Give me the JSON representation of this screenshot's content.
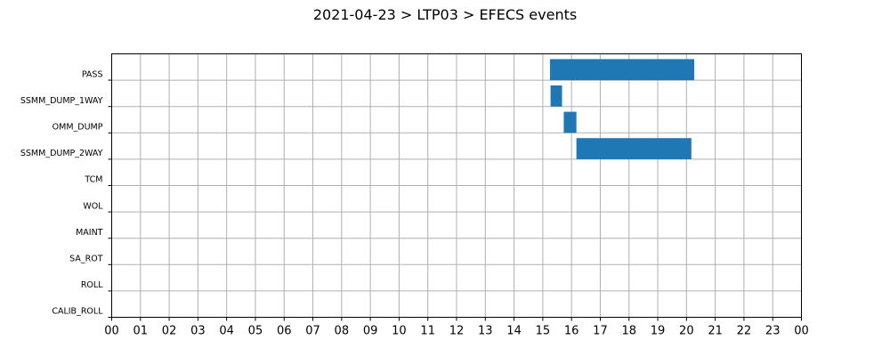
{
  "chart_data": {
    "type": "bar",
    "orientation": "horizontal",
    "title": "2021-04-23 > LTP03 > EFECS events",
    "xlabel": "",
    "ylabel": "",
    "xlim": [
      0,
      24
    ],
    "x_tick_labels": [
      "00",
      "01",
      "02",
      "03",
      "04",
      "05",
      "06",
      "07",
      "08",
      "09",
      "10",
      "11",
      "12",
      "13",
      "14",
      "15",
      "16",
      "17",
      "18",
      "19",
      "20",
      "21",
      "22",
      "23",
      "00"
    ],
    "categories": [
      "PASS",
      "SSMM_DUMP_1WAY",
      "OMM_DUMP",
      "SSMM_DUMP_2WAY",
      "TCM",
      "WOL",
      "MAINT",
      "SA_ROT",
      "ROLL",
      "CALIB_ROLL"
    ],
    "series": [
      {
        "intervals": [
          {
            "category": "PASS",
            "start": 15.25,
            "end": 20.27
          },
          {
            "category": "SSMM_DUMP_1WAY",
            "start": 15.27,
            "end": 15.67
          },
          {
            "category": "OMM_DUMP",
            "start": 15.73,
            "end": 16.17
          },
          {
            "category": "SSMM_DUMP_2WAY",
            "start": 16.17,
            "end": 20.17
          }
        ]
      }
    ],
    "bar_color": "#1f77b4",
    "grid": true
  }
}
